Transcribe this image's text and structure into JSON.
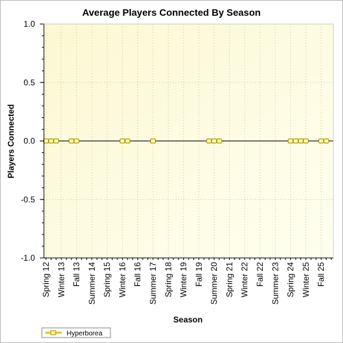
{
  "chart_data": {
    "type": "line",
    "title": "Average Players Connected By Season",
    "xlabel": "Season",
    "ylabel": "Players Connected",
    "ylim": [
      -1.0,
      1.0
    ],
    "yticks": [
      "1.0",
      "0.5",
      "0.0",
      "-0.5",
      "-1.0"
    ],
    "ytick_values": [
      1.0,
      0.5,
      0.0,
      -0.5,
      -1.0
    ],
    "x_tick_labels": [
      "Spring 12",
      "Winter 13",
      "Fall 13",
      "Summer 14",
      "Spring 15",
      "Winter 16",
      "Fall 16",
      "Summer 17",
      "Spring 18",
      "Winter 19",
      "Fall 19",
      "Summer 20",
      "Spring 21",
      "Winter 22",
      "Fall 22",
      "Summer 23",
      "Spring 24",
      "Winter 25",
      "Fall 25"
    ],
    "x_tick_positions": [
      0,
      3,
      6,
      9,
      12,
      15,
      18,
      21,
      24,
      27,
      30,
      33,
      36,
      39,
      42,
      45,
      48,
      51,
      54
    ],
    "x_count": 57,
    "grid": true,
    "legend_position": "bottom-left",
    "series": [
      {
        "name": "Hyperborea",
        "color": "#e8c800",
        "x": [
          0,
          1,
          2,
          5,
          6,
          15,
          16,
          21,
          32,
          33,
          34,
          48,
          49,
          50,
          51,
          54,
          55
        ],
        "y": [
          0,
          0,
          0,
          0,
          0,
          0,
          0,
          0,
          0,
          0,
          0,
          0,
          0,
          0,
          0,
          0,
          0
        ]
      }
    ]
  }
}
